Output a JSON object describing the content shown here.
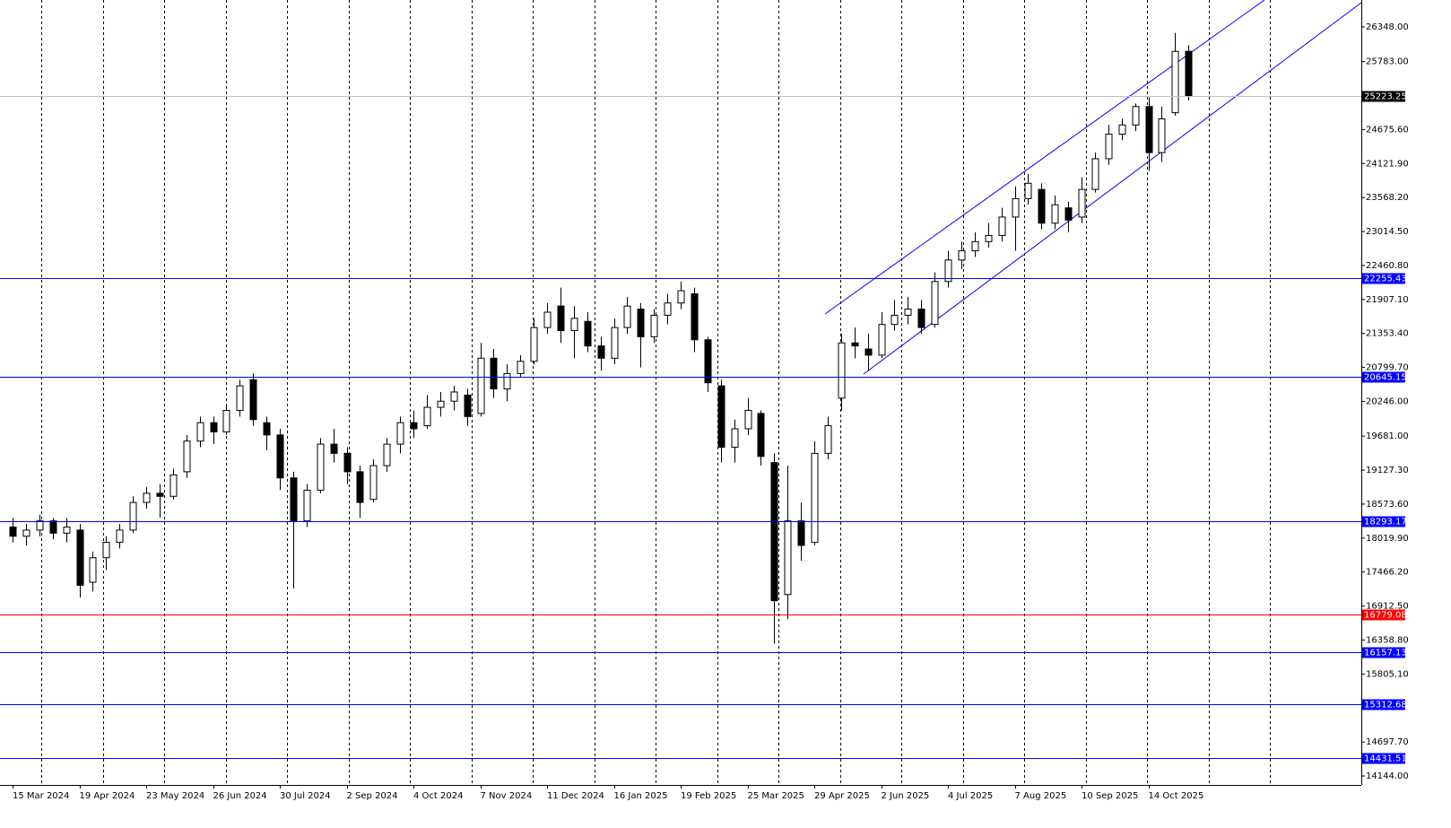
{
  "chart_data": {
    "type": "candlestick",
    "categories": [
      "15 Mar 2024",
      null,
      null,
      null,
      null,
      "19 Apr 2024",
      null,
      null,
      null,
      null,
      "23 May 2024",
      null,
      null,
      null,
      null,
      "26 Jun 2024",
      null,
      null,
      null,
      null,
      "30 Jul 2024",
      null,
      null,
      null,
      null,
      "2 Sep 2024",
      null,
      null,
      null,
      null,
      "4 Oct 2024",
      null,
      null,
      null,
      null,
      "7 Nov 2024",
      null,
      null,
      null,
      null,
      "11 Dec 2024",
      null,
      null,
      null,
      null,
      "16 Jan 2025",
      null,
      null,
      null,
      null,
      "19 Feb 2025",
      null,
      null,
      null,
      null,
      "25 Mar 2025",
      null,
      null,
      null,
      null,
      "29 Apr 2025",
      null,
      null,
      null,
      null,
      "2 Jun 2025",
      null,
      null,
      null,
      null,
      "4 Jul 2025",
      null,
      null,
      null,
      null,
      "7 Aug 2025",
      null,
      null,
      null,
      null,
      "10 Sep 2025",
      null,
      null,
      null,
      null,
      "14 Oct 2025",
      null,
      null,
      null
    ],
    "open": [
      18200,
      18050,
      18150,
      18300,
      18100,
      18150,
      17300,
      17700,
      17950,
      18150,
      18600,
      18750,
      18700,
      19100,
      19600,
      19900,
      19750,
      20100,
      20600,
      19900,
      19700,
      19000,
      18300,
      18800,
      19550,
      19400,
      19100,
      18650,
      19200,
      19550,
      19900,
      19850,
      20150,
      20250,
      20350,
      20050,
      20950,
      20450,
      20700,
      20900,
      21450,
      21800,
      21400,
      21550,
      21150,
      20950,
      21450,
      21750,
      21300,
      21650,
      21850,
      22000,
      21250,
      20500,
      19500,
      19800,
      20050,
      19250,
      17100,
      18300,
      17950,
      19400,
      20300,
      21200,
      21100,
      21000,
      21500,
      21650,
      21750,
      21500,
      22200,
      22550,
      22700,
      22850,
      22950,
      23250,
      23550,
      23700,
      23150,
      23400,
      23250,
      23700,
      24200,
      24600,
      24750,
      25050,
      24300,
      24950,
      25950
    ],
    "high": [
      18350,
      18250,
      18400,
      18350,
      18350,
      18250,
      17800,
      18050,
      18250,
      18700,
      18850,
      18900,
      19150,
      19700,
      20000,
      20000,
      20200,
      20600,
      20700,
      20000,
      19800,
      19100,
      18900,
      19650,
      19800,
      19500,
      19200,
      19300,
      19650,
      20000,
      20100,
      20350,
      20400,
      20500,
      20450,
      21200,
      21100,
      20850,
      21000,
      21600,
      21850,
      22100,
      21800,
      21700,
      21300,
      21600,
      21950,
      21850,
      21750,
      22000,
      22200,
      22100,
      21300,
      20600,
      19950,
      20300,
      20100,
      19400,
      19200,
      18600,
      19600,
      20000,
      21350,
      21450,
      21350,
      21700,
      21900,
      21950,
      21900,
      22350,
      22700,
      22850,
      23000,
      23150,
      23400,
      23750,
      23950,
      23800,
      23600,
      23500,
      23900,
      24300,
      24750,
      24850,
      25100,
      25200,
      25050,
      26250,
      26050
    ],
    "low": [
      17950,
      17900,
      18050,
      18000,
      17950,
      17050,
      17150,
      17500,
      17850,
      18100,
      18500,
      18350,
      18650,
      19000,
      19500,
      19550,
      19700,
      20000,
      19850,
      19450,
      18800,
      17200,
      18200,
      18750,
      19250,
      18900,
      18350,
      18600,
      19100,
      19400,
      19650,
      19800,
      20000,
      20100,
      19850,
      20000,
      20300,
      20250,
      20650,
      20850,
      21350,
      21200,
      20950,
      21050,
      20750,
      20850,
      21350,
      20800,
      21200,
      21500,
      21750,
      21050,
      20400,
      19250,
      19250,
      19700,
      19200,
      16300,
      16700,
      17650,
      17900,
      19300,
      20100,
      20950,
      20750,
      20950,
      21400,
      21500,
      21350,
      21450,
      22100,
      22400,
      22600,
      22750,
      22850,
      22700,
      23450,
      23050,
      23050,
      23000,
      23150,
      23650,
      24100,
      24500,
      24650,
      24000,
      24150,
      24900,
      25150
    ],
    "close": [
      18050,
      18150,
      18300,
      18100,
      18200,
      17250,
      17700,
      17950,
      18150,
      18600,
      18750,
      18700,
      19050,
      19600,
      19900,
      19750,
      20100,
      20500,
      19950,
      19700,
      19000,
      18300,
      18800,
      19550,
      19400,
      19100,
      18600,
      19200,
      19550,
      19900,
      19800,
      20150,
      20250,
      20400,
      20000,
      20950,
      20450,
      20700,
      20900,
      21450,
      21700,
      21400,
      21600,
      21150,
      20950,
      21450,
      21800,
      21300,
      21650,
      21850,
      22050,
      21250,
      20550,
      19500,
      19800,
      20100,
      19350,
      17000,
      18300,
      17900,
      19400,
      19850,
      21200,
      21150,
      21000,
      21500,
      21650,
      21750,
      21450,
      22200,
      22550,
      22700,
      22850,
      22950,
      23250,
      23550,
      23800,
      23150,
      23450,
      23200,
      23700,
      24200,
      24600,
      24750,
      25050,
      24300,
      24850,
      25950,
      25223.25
    ],
    "up_color": "#ffffff",
    "down_color": "#000000",
    "ylim": [
      13998,
      26786
    ],
    "yticks": [
      {
        "value": 26348,
        "label": "26348.00"
      },
      {
        "value": 25783,
        "label": "25783.00"
      },
      {
        "value": 24675.6,
        "label": "24675.60"
      },
      {
        "value": 24121.9,
        "label": "24121.90"
      },
      {
        "value": 23568.2,
        "label": "23568.20"
      },
      {
        "value": 23014.5,
        "label": "23014.50"
      },
      {
        "value": 22460.8,
        "label": "22460.80"
      },
      {
        "value": 21907.1,
        "label": "21907.10"
      },
      {
        "value": 21353.4,
        "label": "21353.40"
      },
      {
        "value": 20799.7,
        "label": "20799.70"
      },
      {
        "value": 20246,
        "label": "20246.00"
      },
      {
        "value": 19681,
        "label": "19681.00"
      },
      {
        "value": 19127.3,
        "label": "19127.30"
      },
      {
        "value": 18573.6,
        "label": "18573.60"
      },
      {
        "value": 18019.9,
        "label": "18019.90"
      },
      {
        "value": 17466.2,
        "label": "17466.20"
      },
      {
        "value": 16912.5,
        "label": "16912.50"
      },
      {
        "value": 16358.8,
        "label": "16358.80"
      },
      {
        "value": 15805.1,
        "label": "15805.10"
      },
      {
        "value": 14697.7,
        "label": "14697.70"
      },
      {
        "value": 14144,
        "label": "14144.00"
      }
    ],
    "levels": [
      {
        "value": 25223.25,
        "label": "25223.25",
        "color": "#c0c0c0",
        "box_color": "#000000"
      },
      {
        "value": 22255.43,
        "label": "22255.43",
        "color": "#0000ff",
        "box_color": "#0000ff"
      },
      {
        "value": 20645.15,
        "label": "20645.15",
        "color": "#0000ff",
        "box_color": "#0000ff"
      },
      {
        "value": 18293.17,
        "label": "18293.17",
        "color": "#0000ff",
        "box_color": "#0000ff"
      },
      {
        "value": 16779.08,
        "label": "16779.08",
        "color": "#ff0000",
        "box_color": "#ff0000"
      },
      {
        "value": 16157.13,
        "label": "16157.13",
        "color": "#0000ff",
        "box_color": "#0000ff"
      },
      {
        "value": 15312.68,
        "label": "15312.68",
        "color": "#0000ff",
        "box_color": "#0000ff"
      },
      {
        "value": 14431.51,
        "label": "14431.51",
        "color": "#0000ff",
        "box_color": "#0000ff"
      }
    ]
  }
}
